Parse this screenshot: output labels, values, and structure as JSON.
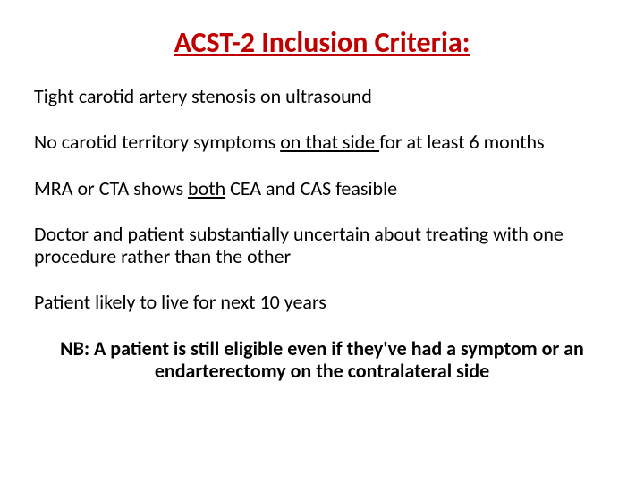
{
  "title": {
    "text": "ACST-2 Inclusion Criteria:",
    "color": "#c00000",
    "fontsize": 32
  },
  "text_color": "#000000",
  "criteria": [
    {
      "segments": [
        {
          "t": "Tight carotid artery stenosis on ultrasound",
          "u": false
        }
      ]
    },
    {
      "segments": [
        {
          "t": "No carotid territory symptoms ",
          "u": false
        },
        {
          "t": "on that side ",
          "u": true
        },
        {
          "t": "for at least 6 months",
          "u": false
        }
      ]
    },
    {
      "segments": [
        {
          "t": "MRA or CTA shows ",
          "u": false
        },
        {
          "t": "both",
          "u": true
        },
        {
          "t": " CEA and CAS feasible",
          "u": false
        }
      ]
    },
    {
      "segments": [
        {
          "t": "Doctor and patient substantially uncertain about treating with one procedure rather than the other",
          "u": false
        }
      ]
    },
    {
      "segments": [
        {
          "t": "Patient likely to live for next 10 years",
          "u": false
        }
      ]
    }
  ],
  "nb": "NB: A patient is still eligible even if they've had a symptom or an endarterectomy on the contralateral side"
}
